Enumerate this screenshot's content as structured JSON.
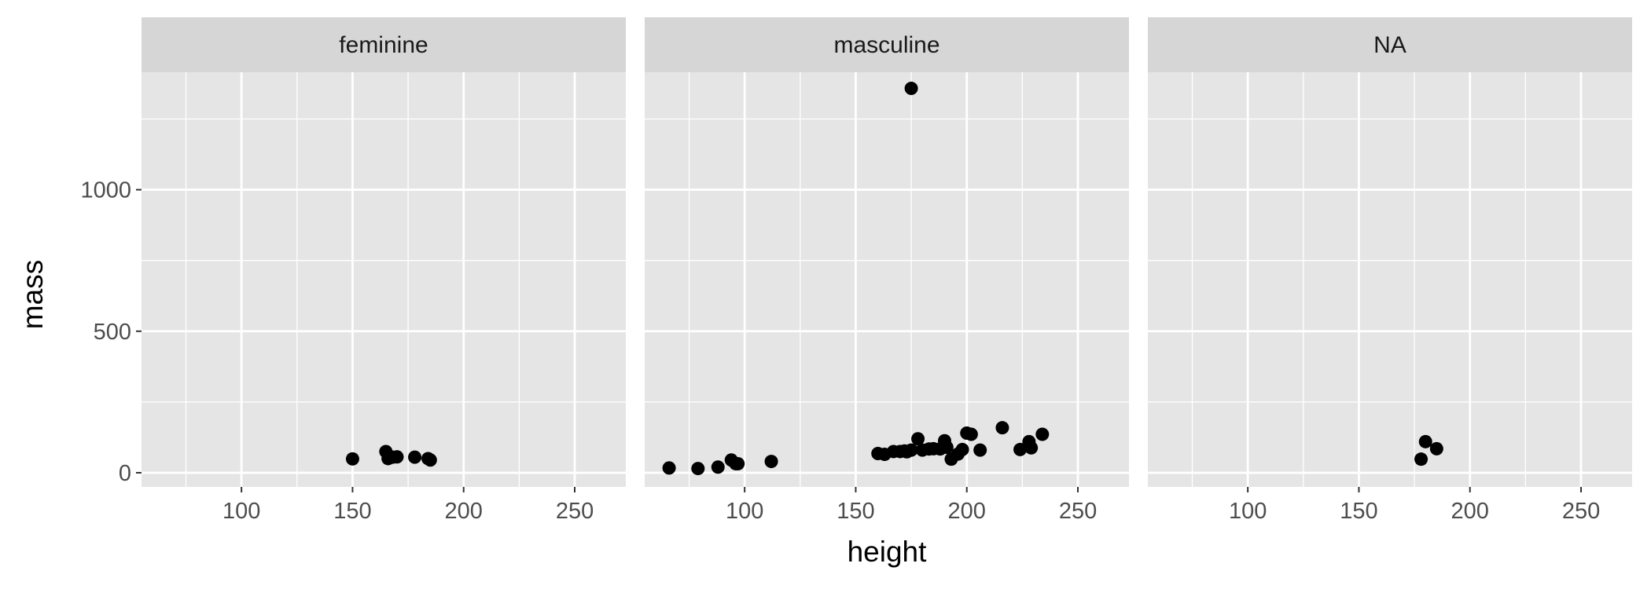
{
  "chart_data": {
    "type": "scatter",
    "xlabel": "height",
    "ylabel": "mass",
    "xlim": [
      55,
      273
    ],
    "ylim": [
      -50,
      1415
    ],
    "x_ticks": [
      100,
      150,
      200,
      250
    ],
    "y_ticks": [
      0,
      500,
      1000
    ],
    "grid": true,
    "colors": {
      "panel_bg": "#e5e5e5",
      "strip_bg": "#d6d6d6",
      "grid": "#ffffff",
      "point": "#000000"
    },
    "panels": [
      {
        "label": "feminine",
        "points": [
          {
            "x": 150,
            "y": 49
          },
          {
            "x": 165,
            "y": 75
          },
          {
            "x": 166,
            "y": 50
          },
          {
            "x": 168,
            "y": 55
          },
          {
            "x": 170,
            "y": 56.2
          },
          {
            "x": 178,
            "y": 55
          },
          {
            "x": 184,
            "y": 50
          },
          {
            "x": 185,
            "y": 45
          }
        ]
      },
      {
        "label": "masculine",
        "points": [
          {
            "x": 66,
            "y": 17
          },
          {
            "x": 79,
            "y": 15
          },
          {
            "x": 88,
            "y": 20
          },
          {
            "x": 94,
            "y": 45
          },
          {
            "x": 96,
            "y": 32
          },
          {
            "x": 97,
            "y": 32
          },
          {
            "x": 112,
            "y": 40
          },
          {
            "x": 160,
            "y": 68
          },
          {
            "x": 163,
            "y": 65
          },
          {
            "x": 167,
            "y": 75
          },
          {
            "x": 170,
            "y": 75
          },
          {
            "x": 172,
            "y": 77
          },
          {
            "x": 173,
            "y": 74
          },
          {
            "x": 175,
            "y": 1358
          },
          {
            "x": 175,
            "y": 80
          },
          {
            "x": 178,
            "y": 120
          },
          {
            "x": 180,
            "y": 80
          },
          {
            "x": 183,
            "y": 84
          },
          {
            "x": 185,
            "y": 85
          },
          {
            "x": 188,
            "y": 84
          },
          {
            "x": 190,
            "y": 113
          },
          {
            "x": 191,
            "y": 90
          },
          {
            "x": 193,
            "y": 48
          },
          {
            "x": 196,
            "y": 66
          },
          {
            "x": 198,
            "y": 82
          },
          {
            "x": 200,
            "y": 140
          },
          {
            "x": 202,
            "y": 136
          },
          {
            "x": 206,
            "y": 80
          },
          {
            "x": 216,
            "y": 159
          },
          {
            "x": 224,
            "y": 82
          },
          {
            "x": 228,
            "y": 110
          },
          {
            "x": 229,
            "y": 88
          },
          {
            "x": 234,
            "y": 136
          }
        ]
      },
      {
        "label": "NA",
        "points": [
          {
            "x": 178,
            "y": 48
          },
          {
            "x": 180,
            "y": 110
          },
          {
            "x": 185,
            "y": 85
          }
        ]
      }
    ]
  }
}
